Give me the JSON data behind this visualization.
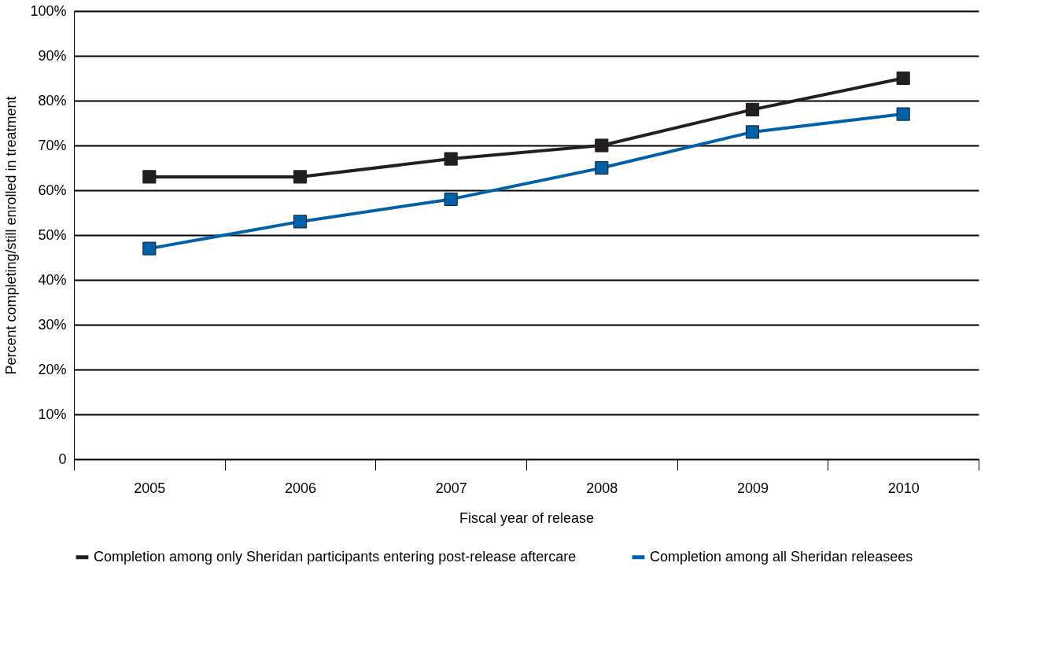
{
  "chart_data": {
    "type": "line",
    "xlabel": "Fiscal year of release",
    "ylabel": "Percent completing/still enrolled in treatment",
    "categories": [
      "2005",
      "2006",
      "2007",
      "2008",
      "2009",
      "2010"
    ],
    "series": [
      {
        "name": "Completion among only Sheridan participants entering post-release aftercare",
        "color": "#231f20",
        "values": [
          63,
          63,
          67,
          70,
          78,
          85
        ]
      },
      {
        "name": "Completion among all Sheridan releasees",
        "color": "#0061a8",
        "values": [
          47,
          53,
          58,
          65,
          73,
          77
        ]
      }
    ],
    "ylim": [
      0,
      100
    ],
    "yticks": [
      0,
      {
        "value": 10,
        "label": "10%"
      },
      {
        "value": 20,
        "label": "20%"
      },
      {
        "value": 30,
        "label": "30%"
      },
      {
        "value": 40,
        "label": "40%"
      },
      {
        "value": 50,
        "label": "50%"
      },
      {
        "value": 60,
        "label": "60%"
      },
      {
        "value": 70,
        "label": "70%"
      },
      {
        "value": 80,
        "label": "80%"
      },
      {
        "value": 90,
        "label": "90%"
      },
      {
        "value": 100,
        "label": "100%"
      }
    ],
    "grid": "y",
    "legend": "bottom",
    "marker": "square",
    "line_style": "solid"
  }
}
